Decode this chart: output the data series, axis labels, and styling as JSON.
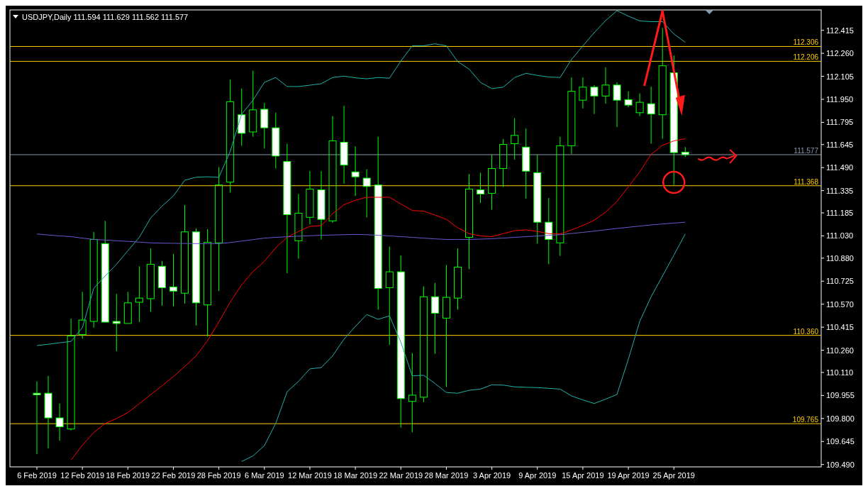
{
  "chart_data": {
    "type": "candlestick",
    "title": "USDJPY,Daily  111.594 111.629 111.562 111.577",
    "categories": [
      "6 Feb 2019",
      null,
      null,
      null,
      "12 Feb 2019",
      null,
      null,
      null,
      "18 Feb 2019",
      null,
      null,
      null,
      "22 Feb 2019",
      null,
      null,
      null,
      "28 Feb 2019",
      null,
      null,
      null,
      "6 Mar 2019",
      null,
      null,
      null,
      "12 Mar 2019",
      null,
      null,
      null,
      "18 Mar 2019",
      null,
      null,
      null,
      "22 Mar 2019",
      null,
      null,
      null,
      "28 Mar 2019",
      null,
      null,
      null,
      "3 Apr 2019",
      null,
      null,
      null,
      "9 Apr 2019",
      null,
      null,
      null,
      "15 Apr 2019",
      null,
      null,
      null,
      "19 Apr 2019",
      null,
      null,
      null,
      "25 Apr 2019",
      null
    ],
    "color": "#00ff00",
    "ohlc": [
      [
        109.97,
        110.05,
        109.56,
        109.96
      ],
      [
        109.97,
        110.087,
        109.599,
        109.804
      ],
      [
        109.804,
        109.901,
        109.65,
        109.744
      ],
      [
        109.729,
        110.472,
        109.72,
        110.356
      ],
      [
        110.365,
        110.653,
        110.337,
        110.463
      ],
      [
        110.454,
        111.057,
        110.412,
        111.006
      ],
      [
        110.978,
        111.131,
        110.445,
        110.449
      ],
      [
        110.454,
        110.639,
        110.254,
        110.44
      ],
      [
        110.44,
        110.653,
        110.44,
        110.579
      ],
      [
        110.583,
        110.825,
        110.449,
        110.611
      ],
      [
        110.607,
        110.946,
        110.519,
        110.839
      ],
      [
        110.825,
        110.862,
        110.56,
        110.681
      ],
      [
        110.686,
        110.909,
        110.556,
        110.658
      ],
      [
        110.644,
        111.238,
        110.574,
        111.057
      ],
      [
        111.057,
        111.08,
        110.426,
        110.579
      ],
      [
        110.565,
        111.075,
        110.352,
        110.987
      ],
      [
        110.983,
        111.494,
        110.658,
        111.373
      ],
      [
        111.392,
        112.083,
        111.322,
        111.934
      ],
      [
        111.846,
        112.022,
        111.637,
        111.721
      ],
      [
        111.73,
        112.143,
        111.698,
        111.879
      ],
      [
        111.883,
        111.925,
        111.619,
        111.758
      ],
      [
        111.758,
        111.86,
        111.484,
        111.568
      ],
      [
        111.531,
        111.651,
        110.778,
        111.173
      ],
      [
        110.997,
        111.312,
        110.876,
        111.183
      ],
      [
        111.155,
        111.466,
        111.108,
        111.345
      ],
      [
        111.34,
        111.466,
        111.006,
        111.141
      ],
      [
        111.131,
        111.837,
        111.118,
        111.67
      ],
      [
        111.661,
        111.906,
        111.382,
        111.507
      ],
      [
        111.461,
        111.633,
        111.298,
        111.428
      ],
      [
        111.419,
        111.479,
        111.155,
        111.363
      ],
      [
        111.373,
        111.698,
        110.533,
        110.676
      ],
      [
        110.681,
        110.959,
        110.296,
        110.788
      ],
      [
        110.788,
        110.899,
        109.739,
        109.934
      ],
      [
        109.915,
        110.24,
        109.707,
        109.957
      ],
      [
        109.943,
        110.69,
        109.91,
        110.62
      ],
      [
        110.62,
        110.713,
        110.235,
        110.509
      ],
      [
        110.476,
        110.834,
        110.013,
        110.616
      ],
      [
        110.611,
        110.946,
        110.533,
        110.82
      ],
      [
        111.02,
        111.447,
        110.806,
        111.345
      ],
      [
        111.34,
        111.456,
        111.252,
        111.312
      ],
      [
        111.317,
        111.577,
        111.206,
        111.484
      ],
      [
        111.484,
        111.683,
        111.359,
        111.646
      ],
      [
        111.651,
        111.823,
        111.544,
        111.707
      ],
      [
        111.628,
        111.753,
        111.28,
        111.466
      ],
      [
        111.456,
        111.577,
        110.978,
        111.122
      ],
      [
        111.122,
        111.285,
        110.839,
        111.006
      ],
      [
        110.983,
        111.698,
        110.895,
        111.637
      ],
      [
        111.637,
        112.097,
        111.582,
        112.004
      ],
      [
        111.944,
        112.097,
        111.888,
        112.032
      ],
      [
        112.032,
        112.046,
        111.851,
        111.972
      ],
      [
        111.972,
        112.166,
        111.921,
        112.046
      ],
      [
        112.046,
        112.064,
        111.763,
        111.944
      ],
      [
        111.948,
        112.004,
        111.897,
        111.911
      ],
      [
        111.86,
        111.99,
        111.837,
        111.93
      ],
      [
        111.92,
        112.036,
        111.651,
        111.851
      ],
      [
        111.846,
        112.431,
        111.684,
        112.176
      ],
      [
        112.129,
        112.245,
        111.373,
        111.591
      ],
      [
        111.594,
        111.629,
        111.562,
        111.577
      ]
    ],
    "series": [
      {
        "type": "line",
        "color": "#20b2aa",
        "values": [
          110.291,
          110.3,
          110.31,
          110.319,
          110.412,
          110.677,
          110.76,
          110.839,
          110.93,
          111.02,
          111.15,
          111.23,
          111.299,
          111.405,
          111.425,
          111.428,
          111.424,
          111.6,
          111.85,
          111.944,
          112.064,
          112.097,
          112.036,
          112.036,
          112.045,
          112.055,
          112.097,
          112.106,
          112.095,
          112.088,
          112.097,
          112.092,
          112.208,
          112.31,
          112.31,
          112.324,
          112.31,
          112.204,
          112.153,
          112.064,
          112.022,
          112.032,
          112.097,
          112.125,
          112.111,
          112.1,
          112.097,
          112.218,
          112.31,
          112.399,
          112.48,
          112.547,
          112.51,
          112.478,
          112.473,
          112.473,
          112.39,
          112.334
        ]
      },
      {
        "type": "line",
        "color": "#20b2aa",
        "values": [
          null,
          null,
          null,
          null,
          null,
          null,
          null,
          null,
          null,
          null,
          null,
          null,
          null,
          null,
          null,
          null,
          null,
          null,
          109.51,
          109.548,
          109.617,
          109.767,
          109.98,
          110.05,
          110.134,
          110.143,
          110.222,
          110.334,
          110.42,
          110.5,
          110.468,
          110.491,
          110.314,
          110.087,
          110.091,
          110.036,
          109.975,
          109.97,
          109.99,
          109.998,
          110.027,
          110.025,
          110.013,
          110.01,
          110.008,
          110.003,
          109.998,
          109.952,
          109.925,
          109.901,
          109.93,
          109.962,
          110.2,
          110.454,
          110.62,
          110.76,
          110.9,
          111.043
        ]
      },
      {
        "type": "line",
        "color": "#ff0000",
        "values": [
          null,
          null,
          null,
          109.52,
          109.62,
          109.706,
          109.766,
          109.8,
          109.84,
          109.9,
          109.96,
          110.02,
          110.082,
          110.15,
          110.222,
          110.324,
          110.45,
          110.584,
          110.7,
          110.79,
          110.858,
          110.95,
          111.02,
          111.06,
          111.094,
          111.099,
          111.18,
          111.24,
          111.27,
          111.29,
          111.29,
          111.29,
          111.245,
          111.201,
          111.197,
          111.17,
          111.141,
          111.085,
          111.045,
          111.03,
          111.025,
          111.045,
          111.065,
          111.071,
          111.06,
          111.045,
          111.043,
          111.07,
          111.1,
          111.136,
          111.19,
          111.262,
          111.36,
          111.461,
          111.58,
          111.64,
          111.67,
          111.684
        ]
      },
      {
        "type": "line",
        "color": "#6a5acd",
        "values": [
          111.043,
          111.036,
          111.03,
          111.025,
          111.015,
          111.006,
          111.002,
          110.997,
          110.993,
          110.988,
          110.983,
          110.981,
          110.98,
          110.979,
          110.978,
          110.978,
          110.978,
          110.985,
          110.995,
          111.005,
          111.015,
          111.02,
          111.024,
          111.028,
          111.031,
          111.034,
          111.036,
          111.038,
          111.04,
          111.038,
          111.034,
          111.03,
          111.025,
          111.02,
          111.015,
          111.01,
          111.006,
          111.006,
          111.006,
          111.008,
          111.011,
          111.015,
          111.02,
          111.025,
          111.029,
          111.034,
          111.038,
          111.046,
          111.054,
          111.062,
          111.071,
          111.08,
          111.088,
          111.096,
          111.104,
          111.11,
          111.116,
          111.122
        ]
      }
    ],
    "ylim": [
      109.474,
      112.552
    ],
    "yticks": [
      {
        "value": 109.49,
        "label": "109.490"
      },
      109.645,
      {
        "value": 109.8,
        "label": "109.800"
      },
      109.955,
      {
        "value": 110.11,
        "label": "110.110"
      },
      {
        "value": 110.26,
        "label": "110.260"
      },
      110.415,
      {
        "value": 110.57,
        "label": "110.570"
      },
      110.725,
      {
        "value": 110.88,
        "label": "110.880"
      },
      {
        "value": 111.03,
        "label": "111.030"
      },
      111.185,
      111.335,
      {
        "value": 111.49,
        "label": "111.490"
      },
      111.645,
      111.795,
      {
        "value": 111.95,
        "label": "111.950"
      },
      112.105,
      {
        "value": 112.26,
        "label": "112.260"
      },
      112.415
    ],
    "ref_lines": [
      {
        "axis": "y",
        "value": 112.306,
        "label": "112.306",
        "color": "#ffcc00"
      },
      {
        "axis": "y",
        "value": 112.206,
        "label": "112.206",
        "color": "#ffcc00"
      },
      {
        "axis": "y",
        "value": 111.577,
        "label": "111.577",
        "color": "#8899aa"
      },
      {
        "axis": "y",
        "value": 111.368,
        "label": "111.368",
        "color": "#ffcc00"
      },
      {
        "axis": "y",
        "value": 110.36,
        "label": "110.360",
        "color": "#ffcc00"
      },
      {
        "axis": "y",
        "value": 109.765,
        "label": "109.765",
        "color": "#ffcc00"
      }
    ]
  }
}
